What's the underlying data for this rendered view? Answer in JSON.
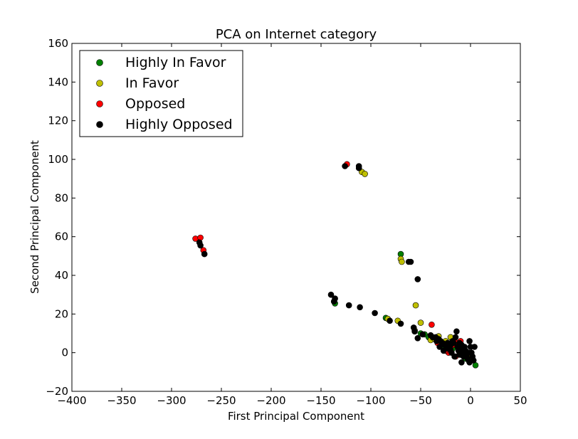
{
  "chart_data": {
    "type": "scatter",
    "title": "PCA on Internet category",
    "xlabel": "First Principal Component",
    "ylabel": "Second Principal Component",
    "xlim": [
      -400,
      50
    ],
    "ylim": [
      -20,
      160
    ],
    "xticks": [
      -400,
      -350,
      -300,
      -250,
      -200,
      -150,
      -100,
      -50,
      0,
      50
    ],
    "yticks": [
      -20,
      0,
      20,
      40,
      60,
      80,
      100,
      120,
      140,
      160
    ],
    "xtick_labels": [
      "−400",
      "−350",
      "−300",
      "−250",
      "−200",
      "−150",
      "−100",
      "−50",
      "0",
      "50"
    ],
    "ytick_labels": [
      "−20",
      "0",
      "20",
      "40",
      "60",
      "80",
      "100",
      "120",
      "140",
      "160"
    ],
    "grid": false,
    "legend_position": "top-left",
    "series": [
      {
        "name": "Highly In Favor",
        "color": "#008000",
        "points": [
          [
            -70,
            51
          ],
          [
            -136,
            25.5
          ],
          [
            -85,
            18
          ],
          [
            -50,
            10
          ],
          [
            -46,
            9.5
          ],
          [
            -42,
            8
          ],
          [
            -22,
            0.5
          ],
          [
            -18,
            2
          ],
          [
            -10,
            -1
          ],
          [
            -5,
            -3
          ],
          [
            5,
            -6.5
          ],
          [
            -2,
            -4
          ],
          [
            -28,
            3
          ]
        ]
      },
      {
        "name": "In Favor",
        "color": "#bfbf00",
        "points": [
          [
            -109,
            93.5
          ],
          [
            -106,
            92.5
          ],
          [
            -70,
            48.5
          ],
          [
            -69,
            47
          ],
          [
            -55,
            24.5
          ],
          [
            -50,
            15.5
          ],
          [
            -73,
            16.5
          ],
          [
            -83,
            17.5
          ],
          [
            -56,
            11.5
          ],
          [
            -40,
            6.5
          ],
          [
            -36,
            7
          ],
          [
            -32,
            8.5
          ],
          [
            -20,
            8
          ],
          [
            -16,
            6
          ],
          [
            -12,
            4
          ],
          [
            -8,
            2
          ],
          [
            -4,
            0
          ],
          [
            -2,
            -1
          ],
          [
            0,
            -2
          ],
          [
            -25,
            6
          ],
          [
            -30,
            4
          ]
        ]
      },
      {
        "name": "Opposed",
        "color": "#ff0000",
        "points": [
          [
            -124,
            97.5
          ],
          [
            -276,
            59
          ],
          [
            -271,
            59.5
          ],
          [
            -268,
            53
          ],
          [
            -39,
            14.5
          ],
          [
            -33,
            5
          ],
          [
            -22,
            0
          ],
          [
            -14,
            5
          ],
          [
            -12,
            3
          ],
          [
            -8,
            2
          ],
          [
            -15,
            -2
          ],
          [
            -10,
            6
          ],
          [
            -6,
            1
          ],
          [
            -18,
            4
          ],
          [
            -25,
            1
          ]
        ]
      },
      {
        "name": "Highly Opposed",
        "color": "#000000",
        "points": [
          [
            -126,
            96.5
          ],
          [
            -112,
            96.5
          ],
          [
            -112,
            95.5
          ],
          [
            -272,
            57
          ],
          [
            -271,
            55.5
          ],
          [
            -267,
            51
          ],
          [
            -62,
            47
          ],
          [
            -60,
            47
          ],
          [
            -53,
            38
          ],
          [
            -140,
            30
          ],
          [
            -136,
            28
          ],
          [
            -137,
            26.5
          ],
          [
            -122,
            24.5
          ],
          [
            -111,
            23.5
          ],
          [
            -96,
            20.5
          ],
          [
            -81,
            16.5
          ],
          [
            -70,
            15
          ],
          [
            -57,
            13
          ],
          [
            -56,
            11
          ],
          [
            -53,
            7.5
          ],
          [
            -48,
            9.5
          ],
          [
            -40,
            9
          ],
          [
            -35,
            8
          ],
          [
            -32,
            7
          ],
          [
            -30,
            6
          ],
          [
            -28,
            5
          ],
          [
            -26,
            4
          ],
          [
            -24,
            3
          ],
          [
            -22,
            2
          ],
          [
            -20,
            1.5
          ],
          [
            -19,
            0
          ],
          [
            -17,
            5
          ],
          [
            -15,
            8
          ],
          [
            -14,
            11
          ],
          [
            -13,
            3
          ],
          [
            -12,
            1
          ],
          [
            -11,
            -1
          ],
          [
            -10,
            2
          ],
          [
            -9,
            4
          ],
          [
            -8,
            0
          ],
          [
            -7,
            -2
          ],
          [
            -6,
            3
          ],
          [
            -5,
            1
          ],
          [
            -4,
            -1
          ],
          [
            -3,
            -3
          ],
          [
            -2,
            0
          ],
          [
            -1,
            6
          ],
          [
            0,
            3
          ],
          [
            1,
            0
          ],
          [
            2,
            -2
          ],
          [
            3,
            -4
          ],
          [
            4,
            3
          ],
          [
            -1,
            -5
          ],
          [
            -9,
            -5
          ],
          [
            -16,
            -2
          ],
          [
            -23,
            5
          ],
          [
            -27,
            1
          ],
          [
            -31,
            3
          ],
          [
            -34,
            6
          ],
          [
            -38,
            8
          ],
          [
            -20,
            4
          ],
          [
            -18,
            6
          ],
          [
            -11,
            5
          ]
        ]
      }
    ]
  }
}
